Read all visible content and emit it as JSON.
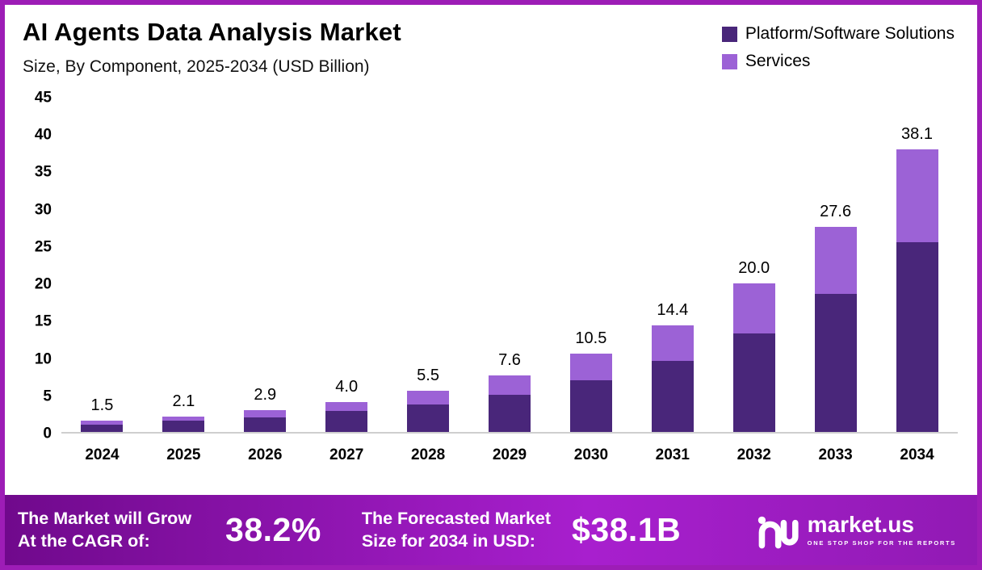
{
  "header": {
    "title": "AI Agents Data Analysis Market",
    "subtitle": "Size, By Component, 2025-2034 (USD Billion)"
  },
  "legend": [
    {
      "label": "Platform/Software Solutions",
      "color": "#49267a"
    },
    {
      "label": "Services",
      "color": "#9c62d6"
    }
  ],
  "colors": {
    "frame_border": "#9d1db6",
    "axis_line": "#cfcfcf",
    "footer_gradient": [
      "#70098c",
      "#a81fce",
      "#911ab4"
    ]
  },
  "chart_data": {
    "type": "bar",
    "stacked": true,
    "title": "AI Agents Data Analysis Market Size, By Component, 2025-2034 (USD Billion)",
    "categories": [
      "2024",
      "2025",
      "2026",
      "2027",
      "2028",
      "2029",
      "2030",
      "2031",
      "2032",
      "2033",
      "2034"
    ],
    "series": [
      {
        "name": "Platform/Software Solutions",
        "color": "#49267a",
        "values": [
          1.0,
          1.5,
          2.0,
          2.8,
          3.7,
          5.0,
          7.0,
          9.6,
          13.3,
          18.6,
          25.5
        ]
      },
      {
        "name": "Services",
        "color": "#9c62d6",
        "values": [
          0.5,
          0.6,
          0.9,
          1.2,
          1.8,
          2.6,
          3.5,
          4.8,
          6.7,
          9.0,
          12.6
        ]
      }
    ],
    "totals": [
      1.5,
      2.1,
      2.9,
      4.0,
      5.5,
      7.6,
      10.5,
      14.4,
      20.0,
      27.6,
      38.1
    ],
    "total_labels": [
      "1.5",
      "2.1",
      "2.9",
      "4.0",
      "5.5",
      "7.6",
      "10.5",
      "14.4",
      "20.0",
      "27.6",
      "38.1"
    ],
    "xlabel": "",
    "ylabel": "",
    "ylim": [
      0,
      45
    ],
    "yticks": [
      0,
      5,
      10,
      15,
      20,
      25,
      30,
      35,
      40,
      45
    ],
    "grid": false,
    "legend_position": "top-right"
  },
  "footer": {
    "cagr_label": "The Market will Grow\nAt the CAGR of:",
    "cagr_value": "38.2%",
    "forecast_label": "The Forecasted Market\nSize for 2034 in USD:",
    "forecast_value": "$38.1B",
    "brand": {
      "name": "market.us",
      "tagline": "ONE STOP SHOP FOR THE REPORTS"
    }
  }
}
